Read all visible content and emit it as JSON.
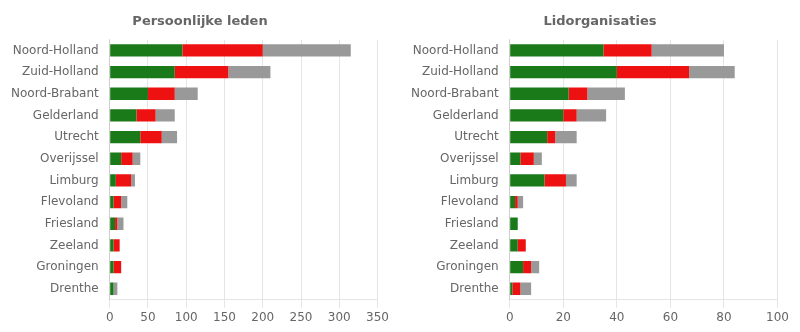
{
  "chart_data": [
    {
      "type": "bar",
      "title": "Persoonlijke leden",
      "orientation": "horizontal",
      "stacked": true,
      "grid": true,
      "categories": [
        "Noord-Holland",
        "Zuid-Holland",
        "Noord-Brabant",
        "Gelderland",
        "Utrecht",
        "Overijssel",
        "Limburg",
        "Flevoland",
        "Friesland",
        "Zeeland",
        "Groningen",
        "Drenthe"
      ],
      "series": [
        {
          "color": "#1a7a1a",
          "values": [
            95,
            85,
            50,
            35,
            40,
            15,
            8,
            5,
            7,
            5,
            5,
            5
          ]
        },
        {
          "color": "#ee1111",
          "values": [
            105,
            70,
            35,
            25,
            28,
            15,
            20,
            10,
            3,
            8,
            10,
            0
          ]
        },
        {
          "color": "#999999",
          "values": [
            115,
            55,
            30,
            25,
            20,
            10,
            5,
            8,
            8,
            0,
            0,
            5
          ]
        }
      ],
      "xlim": [
        0,
        350
      ],
      "xticks": [
        0,
        50,
        100,
        150,
        200,
        250,
        300,
        350
      ]
    },
    {
      "type": "bar",
      "title": "Lidorganisaties",
      "orientation": "horizontal",
      "stacked": true,
      "grid": true,
      "categories": [
        "Noord-Holland",
        "Zuid-Holland",
        "Noord-Brabant",
        "Gelderland",
        "Utrecht",
        "Overijssel",
        "Limburg",
        "Flevoland",
        "Friesland",
        "Zeeland",
        "Groningen",
        "Drenthe"
      ],
      "series": [
        {
          "color": "#1a7a1a",
          "values": [
            35,
            40,
            22,
            20,
            14,
            4,
            13,
            2,
            3,
            3,
            5,
            1
          ]
        },
        {
          "color": "#ee1111",
          "values": [
            18,
            27,
            7,
            5,
            3,
            5,
            8,
            1,
            0,
            3,
            3,
            3
          ]
        },
        {
          "color": "#999999",
          "values": [
            27,
            17,
            14,
            11,
            8,
            3,
            4,
            2,
            0,
            0,
            3,
            4
          ]
        }
      ],
      "xlim": [
        0,
        100
      ],
      "xticks": [
        0,
        20,
        40,
        60,
        80,
        100
      ]
    }
  ]
}
